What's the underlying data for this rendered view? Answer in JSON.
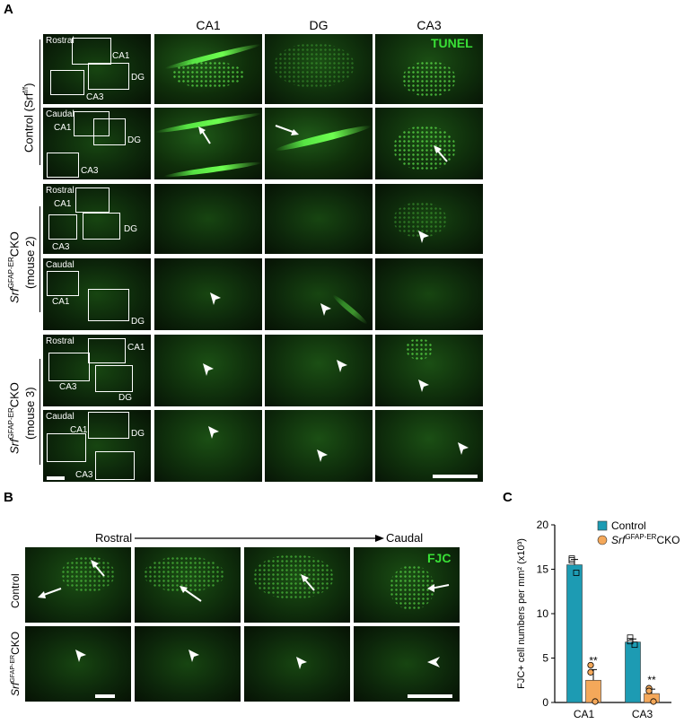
{
  "panel_a": {
    "letter": "A",
    "columns": [
      "CA1",
      "DG",
      "CA3"
    ],
    "stain": "TUNEL",
    "overview_labels": {
      "rostral": "Rostral",
      "caudal": "Caudal",
      "ca1": "CA1",
      "dg": "DG",
      "ca3": "CA3"
    },
    "groups": [
      {
        "label": "Control (Srf",
        "sup": "f/f",
        "suffix": ")"
      },
      {
        "italic": "Srf",
        "sup": "GFAP-ER",
        "label": "CKO",
        "sub_label": "(mouse 2)"
      },
      {
        "italic": "Srf",
        "sup": "GFAP-ER",
        "label": "CKO",
        "sub_label": "(mouse 3)"
      }
    ]
  },
  "panel_b": {
    "letter": "B",
    "rostral": "Rostral",
    "caudal": "Caudal",
    "stain": "FJC",
    "rows": [
      {
        "label": "Control"
      },
      {
        "italic": "Srf",
        "sup": "GFAP-ER",
        "label": "CKO"
      }
    ]
  },
  "chart_data": {
    "letter": "C",
    "type": "bar",
    "categories": [
      "CA1",
      "CA3"
    ],
    "ylabel": "FJC+ cell numbers per mm² (x10³)",
    "ylim": [
      0,
      20
    ],
    "yticks": [
      0,
      5,
      10,
      15,
      20
    ],
    "series": [
      {
        "name": "Control",
        "color": "#1d9bb3",
        "values": [
          15.5,
          6.8
        ],
        "sem": [
          0.6,
          0.35
        ],
        "points": [
          [
            16.2,
            14.6,
            16.0
          ],
          [
            7.3,
            6.5,
            6.9
          ]
        ]
      },
      {
        "name": "CKO",
        "name_italic": "Srf",
        "name_sup": "GFAP-ER",
        "color": "#f4a85a",
        "values": [
          2.5,
          1.0
        ],
        "sem": [
          1.2,
          0.5
        ],
        "points": [
          [
            4.2,
            0.1,
            3.4
          ],
          [
            1.6,
            0.1,
            1.3
          ]
        ]
      }
    ],
    "significance": [
      "**",
      "**"
    ],
    "legend_position": "top-right"
  }
}
